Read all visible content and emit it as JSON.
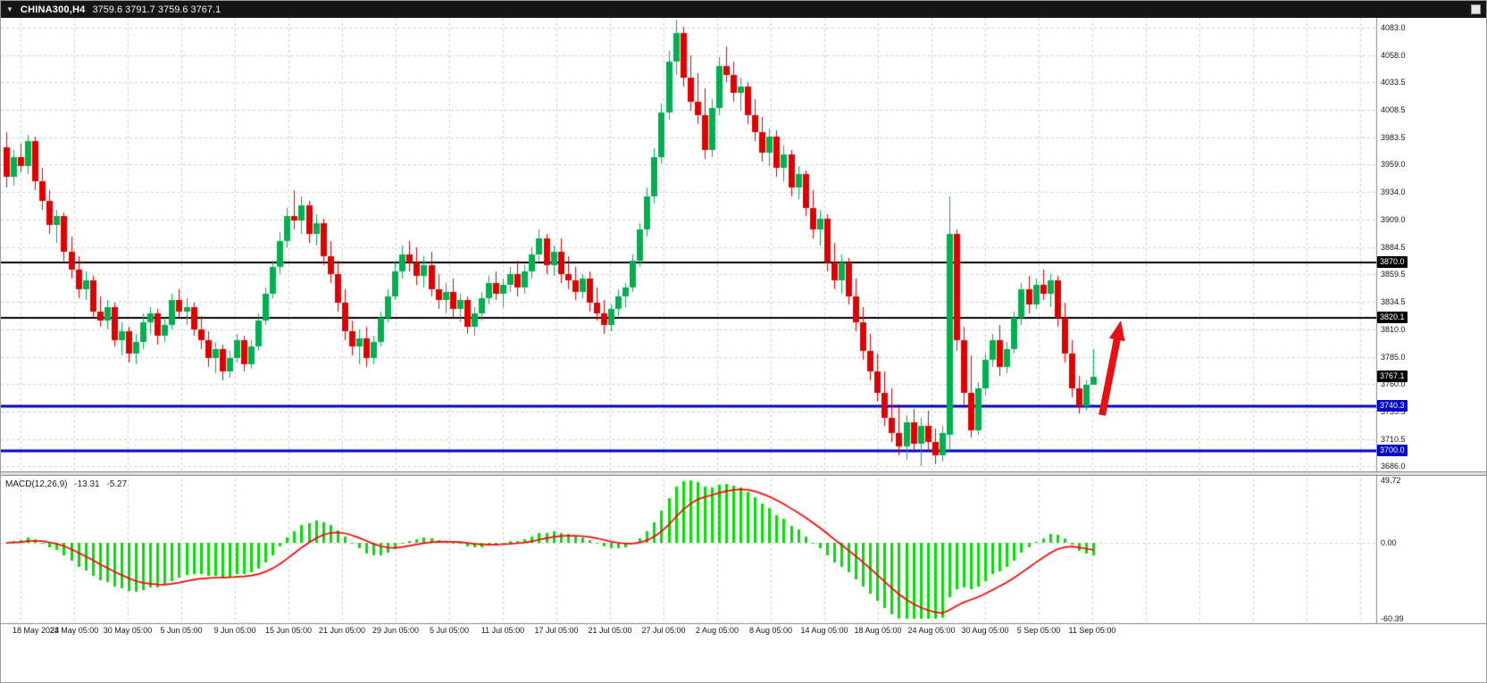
{
  "title_bar": {
    "dropdown_icon": "▼",
    "symbol_period": "CHINA300,H4",
    "ohlc": "3759.6 3791.7 3759.6 3767.1"
  },
  "chart_data": {
    "type": "candlestick",
    "symbol": "CHINA300",
    "timeframe": "H4",
    "title": "CHINA300,H4",
    "price_ylim": [
      3686.0,
      4083.0
    ],
    "grid": true,
    "price_axis_labels": [
      4083.0,
      4058.0,
      4033.5,
      4008.5,
      3983.5,
      3959.0,
      3934.0,
      3909.0,
      3884.5,
      3859.5,
      3834.5,
      3810.0,
      3785.0,
      3760.0,
      3735.5,
      3710.5,
      3686.0
    ],
    "time_labels": [
      "18 May 2023",
      "24 May 05:00",
      "30 May 05:00",
      "5 Jun 05:00",
      "9 Jun 05:00",
      "15 Jun 05:00",
      "21 Jun 05:00",
      "29 Jun 05:00",
      "5 Jul 05:00",
      "11 Jul 05:00",
      "17 Jul 05:00",
      "21 Jul 05:00",
      "27 Jul 05:00",
      "2 Aug 05:00",
      "8 Aug 05:00",
      "14 Aug 05:00",
      "18 Aug 05:00",
      "24 Aug 05:00",
      "30 Aug 05:00",
      "5 Sep 05:00",
      "11 Sep 05:00"
    ],
    "horizontal_lines": [
      {
        "value": 3870.0,
        "color": "#000000",
        "width": 2
      },
      {
        "value": 3820.1,
        "color": "#000000",
        "width": 2
      },
      {
        "value": 3740.3,
        "color": "#0000C8",
        "width": 3
      },
      {
        "value": 3700.0,
        "color": "#0000C8",
        "width": 3
      }
    ],
    "current_price": 3767.1,
    "candles": [
      [
        3975,
        3988,
        3938,
        3948
      ],
      [
        3948,
        3972,
        3940,
        3966
      ],
      [
        3966,
        3978,
        3952,
        3958
      ],
      [
        3958,
        3986,
        3950,
        3980
      ],
      [
        3980,
        3984,
        3936,
        3944
      ],
      [
        3944,
        3956,
        3918,
        3926
      ],
      [
        3926,
        3936,
        3896,
        3904
      ],
      [
        3904,
        3918,
        3888,
        3912
      ],
      [
        3912,
        3916,
        3872,
        3880
      ],
      [
        3880,
        3894,
        3856,
        3864
      ],
      [
        3864,
        3876,
        3838,
        3846
      ],
      [
        3846,
        3862,
        3836,
        3854
      ],
      [
        3854,
        3858,
        3820,
        3826
      ],
      [
        3826,
        3840,
        3812,
        3818
      ],
      [
        3818,
        3836,
        3810,
        3830
      ],
      [
        3830,
        3834,
        3794,
        3800
      ],
      [
        3800,
        3816,
        3786,
        3808
      ],
      [
        3808,
        3812,
        3780,
        3788
      ],
      [
        3788,
        3806,
        3778,
        3798
      ],
      [
        3798,
        3824,
        3792,
        3816
      ],
      [
        3816,
        3830,
        3806,
        3824
      ],
      [
        3824,
        3828,
        3796,
        3804
      ],
      [
        3804,
        3820,
        3798,
        3814
      ],
      [
        3814,
        3842,
        3810,
        3836
      ],
      [
        3836,
        3846,
        3820,
        3826
      ],
      [
        3826,
        3838,
        3814,
        3830
      ],
      [
        3830,
        3834,
        3804,
        3810
      ],
      [
        3810,
        3822,
        3792,
        3800
      ],
      [
        3800,
        3808,
        3776,
        3784
      ],
      [
        3784,
        3798,
        3770,
        3792
      ],
      [
        3792,
        3796,
        3764,
        3772
      ],
      [
        3772,
        3790,
        3766,
        3784
      ],
      [
        3784,
        3806,
        3780,
        3800
      ],
      [
        3800,
        3804,
        3772,
        3778
      ],
      [
        3778,
        3800,
        3774,
        3794
      ],
      [
        3794,
        3824,
        3790,
        3818
      ],
      [
        3818,
        3848,
        3814,
        3842
      ],
      [
        3842,
        3872,
        3838,
        3866
      ],
      [
        3866,
        3898,
        3860,
        3890
      ],
      [
        3890,
        3920,
        3884,
        3912
      ],
      [
        3912,
        3936,
        3900,
        3908
      ],
      [
        3908,
        3930,
        3896,
        3922
      ],
      [
        3922,
        3926,
        3888,
        3896
      ],
      [
        3896,
        3914,
        3886,
        3906
      ],
      [
        3906,
        3910,
        3868,
        3876
      ],
      [
        3876,
        3890,
        3852,
        3860
      ],
      [
        3860,
        3872,
        3826,
        3834
      ],
      [
        3834,
        3846,
        3800,
        3808
      ],
      [
        3808,
        3818,
        3786,
        3794
      ],
      [
        3794,
        3810,
        3778,
        3802
      ],
      [
        3802,
        3812,
        3776,
        3784
      ],
      [
        3784,
        3804,
        3778,
        3798
      ],
      [
        3798,
        3826,
        3794,
        3820
      ],
      [
        3820,
        3846,
        3816,
        3840
      ],
      [
        3840,
        3870,
        3836,
        3862
      ],
      [
        3862,
        3886,
        3856,
        3878
      ],
      [
        3878,
        3890,
        3862,
        3870
      ],
      [
        3870,
        3884,
        3850,
        3858
      ],
      [
        3858,
        3876,
        3848,
        3868
      ],
      [
        3868,
        3880,
        3840,
        3846
      ],
      [
        3846,
        3860,
        3828,
        3836
      ],
      [
        3836,
        3852,
        3824,
        3844
      ],
      [
        3844,
        3856,
        3820,
        3828
      ],
      [
        3828,
        3842,
        3816,
        3836
      ],
      [
        3836,
        3840,
        3806,
        3812
      ],
      [
        3812,
        3830,
        3804,
        3824
      ],
      [
        3824,
        3844,
        3818,
        3838
      ],
      [
        3838,
        3858,
        3832,
        3852
      ],
      [
        3852,
        3862,
        3836,
        3842
      ],
      [
        3842,
        3856,
        3830,
        3850
      ],
      [
        3850,
        3866,
        3844,
        3860
      ],
      [
        3860,
        3872,
        3840,
        3848
      ],
      [
        3848,
        3868,
        3842,
        3862
      ],
      [
        3862,
        3884,
        3856,
        3878
      ],
      [
        3878,
        3900,
        3872,
        3892
      ],
      [
        3892,
        3896,
        3860,
        3868
      ],
      [
        3868,
        3886,
        3858,
        3880
      ],
      [
        3880,
        3892,
        3852,
        3860
      ],
      [
        3860,
        3876,
        3846,
        3854
      ],
      [
        3854,
        3866,
        3836,
        3844
      ],
      [
        3844,
        3860,
        3838,
        3856
      ],
      [
        3856,
        3862,
        3826,
        3834
      ],
      [
        3834,
        3848,
        3818,
        3824
      ],
      [
        3824,
        3836,
        3806,
        3814
      ],
      [
        3814,
        3832,
        3808,
        3828
      ],
      [
        3828,
        3846,
        3822,
        3840
      ],
      [
        3840,
        3852,
        3830,
        3848
      ],
      [
        3848,
        3878,
        3844,
        3872
      ],
      [
        3872,
        3906,
        3866,
        3900
      ],
      [
        3900,
        3938,
        3894,
        3930
      ],
      [
        3930,
        3974,
        3924,
        3966
      ],
      [
        3966,
        4014,
        3960,
        4006
      ],
      [
        4006,
        4062,
        4000,
        4052
      ],
      [
        4052,
        4090,
        4040,
        4078
      ],
      [
        4078,
        4084,
        4030,
        4038
      ],
      [
        4038,
        4058,
        4008,
        4016
      ],
      [
        4016,
        4042,
        3996,
        4004
      ],
      [
        4004,
        4028,
        3964,
        3972
      ],
      [
        3972,
        4018,
        3966,
        4010
      ],
      [
        4010,
        4056,
        4004,
        4048
      ],
      [
        4048,
        4066,
        4034,
        4040
      ],
      [
        4040,
        4052,
        4016,
        4024
      ],
      [
        4024,
        4038,
        4008,
        4030
      ],
      [
        4030,
        4034,
        3996,
        4004
      ],
      [
        4004,
        4018,
        3980,
        3988
      ],
      [
        3988,
        4002,
        3962,
        3970
      ],
      [
        3970,
        3992,
        3958,
        3984
      ],
      [
        3984,
        3990,
        3948,
        3956
      ],
      [
        3956,
        3976,
        3944,
        3968
      ],
      [
        3968,
        3972,
        3930,
        3938
      ],
      [
        3938,
        3958,
        3928,
        3950
      ],
      [
        3950,
        3954,
        3912,
        3920
      ],
      [
        3920,
        3936,
        3892,
        3900
      ],
      [
        3900,
        3918,
        3886,
        3910
      ],
      [
        3910,
        3914,
        3862,
        3870
      ],
      [
        3870,
        3888,
        3846,
        3854
      ],
      [
        3854,
        3878,
        3842,
        3870
      ],
      [
        3870,
        3874,
        3832,
        3840
      ],
      [
        3840,
        3856,
        3808,
        3816
      ],
      [
        3816,
        3830,
        3782,
        3790
      ],
      [
        3790,
        3806,
        3764,
        3772
      ],
      [
        3772,
        3788,
        3744,
        3752
      ],
      [
        3752,
        3772,
        3722,
        3730
      ],
      [
        3730,
        3756,
        3708,
        3716
      ],
      [
        3716,
        3742,
        3696,
        3704
      ],
      [
        3704,
        3732,
        3692,
        3726
      ],
      [
        3726,
        3738,
        3698,
        3706
      ],
      [
        3706,
        3730,
        3686,
        3722
      ],
      [
        3722,
        3736,
        3700,
        3708
      ],
      [
        3708,
        3720,
        3688,
        3696
      ],
      [
        3696,
        3722,
        3690,
        3716
      ],
      [
        3714,
        3930,
        3700,
        3896
      ],
      [
        3896,
        3900,
        3790,
        3800
      ],
      [
        3800,
        3812,
        3742,
        3752
      ],
      [
        3752,
        3786,
        3712,
        3718
      ],
      [
        3718,
        3762,
        3714,
        3756
      ],
      [
        3756,
        3788,
        3750,
        3782
      ],
      [
        3782,
        3806,
        3776,
        3800
      ],
      [
        3800,
        3814,
        3768,
        3776
      ],
      [
        3776,
        3798,
        3770,
        3792
      ],
      [
        3792,
        3826,
        3788,
        3820
      ],
      [
        3820,
        3852,
        3814,
        3846
      ],
      [
        3846,
        3858,
        3824,
        3832
      ],
      [
        3832,
        3856,
        3828,
        3850
      ],
      [
        3850,
        3864,
        3836,
        3842
      ],
      [
        3842,
        3860,
        3830,
        3854
      ],
      [
        3854,
        3858,
        3812,
        3820
      ],
      [
        3820,
        3834,
        3780,
        3788
      ],
      [
        3788,
        3800,
        3748,
        3756
      ],
      [
        3756,
        3768,
        3734,
        3740
      ],
      [
        3740,
        3764,
        3736,
        3759.5
      ],
      [
        3759.6,
        3791.7,
        3759.6,
        3767.1
      ]
    ],
    "macd": {
      "type": "macd",
      "label": "MACD(12,26,9)",
      "macd_value": "-13.31",
      "signal_value": "-5.27",
      "fast": 12,
      "slow": 26,
      "signal": 9,
      "ylim": [
        -60.39,
        49.72
      ],
      "axis_labels": [
        "49.72",
        "0.00",
        "-60.39"
      ]
    },
    "annotations": [
      {
        "type": "arrow-up",
        "color": "#E81010",
        "from_price": 3742,
        "to_price": 3822,
        "near_time": "11 Sep 05:00"
      }
    ]
  },
  "colors": {
    "bull": "#00B050",
    "bear": "#E00000",
    "macd_hist": "#00E000",
    "macd_signal": "#FF0000",
    "grid": "#CDCDCD",
    "axis_border": "#888888",
    "titlebar_bg": "#161616",
    "titlebar_text": "#FFFFFF",
    "tag_black_bg": "#000000",
    "tag_blue_bg": "#0000C8",
    "arrow": "#E81010"
  }
}
